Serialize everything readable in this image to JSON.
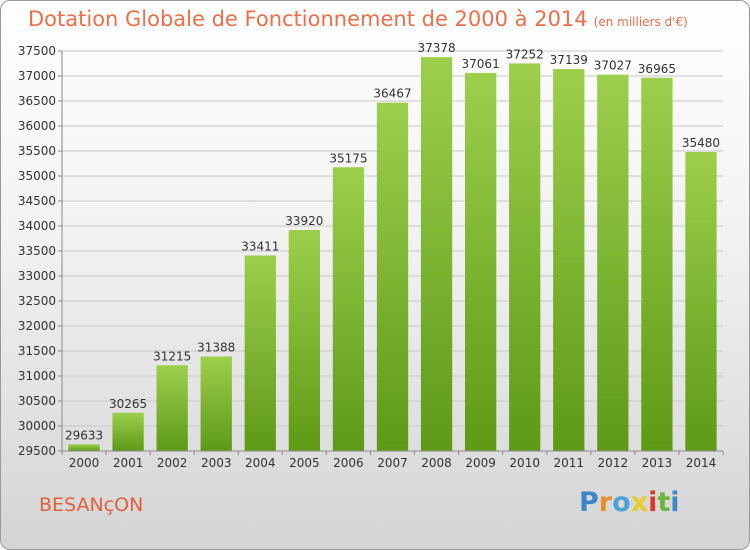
{
  "title": "Dotation Globale de Fonctionnement de 2000 à 2014",
  "unit_label": "(en milliers d'€)",
  "place_name": "BESANçON",
  "logo": {
    "text": "Proxiti",
    "letters": [
      "P",
      "r",
      "o",
      "x",
      "i",
      "t",
      "i"
    ]
  },
  "colors": {
    "title": "#e8704a",
    "bar_light": "#9ccf4c",
    "bar_dark": "#5e9a16",
    "grid": "#c8c8c8"
  },
  "chart_data": {
    "type": "bar",
    "categories": [
      "2000",
      "2001",
      "2002",
      "2003",
      "2004",
      "2005",
      "2006",
      "2007",
      "2008",
      "2009",
      "2010",
      "2011",
      "2012",
      "2013",
      "2014"
    ],
    "values": [
      29633,
      30265,
      31215,
      31388,
      33411,
      33920,
      35175,
      36467,
      37378,
      37061,
      37252,
      37139,
      37027,
      36965,
      35480
    ],
    "data_labels": [
      "29633",
      "30265",
      "31215",
      "31388",
      "33411",
      "33920",
      "35175",
      "36467",
      "37378",
      "37061",
      "37252",
      "37139",
      "37027",
      "36965",
      "35480"
    ],
    "ylim": [
      29500,
      37500
    ],
    "yticks": [
      29500,
      30000,
      30500,
      31000,
      31500,
      32000,
      32500,
      33000,
      33500,
      34000,
      34500,
      35000,
      35500,
      36000,
      36500,
      37000,
      37500
    ],
    "grid": true,
    "title": "Dotation Globale de Fonctionnement de 2000 à 2014"
  }
}
